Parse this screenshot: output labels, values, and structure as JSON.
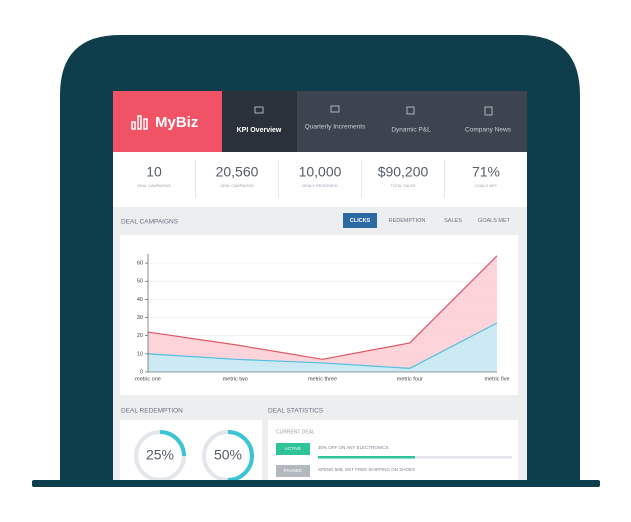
{
  "header": {
    "logo": "MyBiz",
    "tabs": [
      "KPI Overview",
      "Quarterly Increments",
      "Dynamic P&L",
      "Company News"
    ]
  },
  "kpis": [
    {
      "value": "10",
      "label": "DEAL CAMPAIGNS"
    },
    {
      "value": "20,560",
      "label": "DEAL CAMPAIGNS"
    },
    {
      "value": "10,000",
      "label": "DEALS REDEEMED"
    },
    {
      "value": "$90,200",
      "label": "TOTAL SALES"
    },
    {
      "value": "71%",
      "label": "GOALS MET"
    }
  ],
  "campaigns": {
    "title": "DEAL CAMPAIGNS",
    "buttons": [
      "CLICKS",
      "REDEMPTION",
      "SALES",
      "GOALS MET"
    ]
  },
  "chart_data": {
    "type": "area",
    "categories": [
      "metric one",
      "metric two",
      "metric three",
      "metric four",
      "metric five"
    ],
    "series": [
      {
        "color": "#e05666",
        "fill": "#fbcdd4",
        "values": [
          22,
          15,
          7,
          16,
          64
        ]
      },
      {
        "color": "#4fc0e0",
        "fill": "#c4ecf7",
        "values": [
          10,
          7,
          5,
          2,
          27
        ]
      }
    ],
    "ylim": [
      0,
      65
    ],
    "yticks": [
      0,
      10,
      20,
      30,
      40,
      50,
      60
    ],
    "grid": true
  },
  "redemption": {
    "title": "DEAL REDEMPTION",
    "donuts": [
      {
        "value": 25,
        "label": "25%"
      },
      {
        "value": 50,
        "label": "50%"
      }
    ]
  },
  "statistics": {
    "title": "DEAL STATISTICS",
    "subtitle": "CURRENT DEAL",
    "deals": [
      {
        "status": "ACTIVE",
        "text": "30% OFF ON ANY ELECTRONICS",
        "progress": 50
      },
      {
        "status": "PAUSED",
        "text": "SPEND 50$, GET FREE SHIPPING ON SHOES"
      }
    ]
  }
}
